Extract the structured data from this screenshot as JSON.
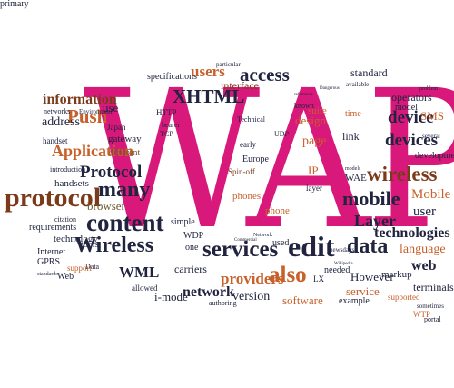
{
  "cloud": {
    "palette": {
      "magenta": "#d8187a",
      "navy": "#20243f",
      "brown": "#7b3b1a",
      "orange": "#c8602a",
      "olive": "#6b5a30",
      "pink": "#c01a6a",
      "gray": "#3b3b3b"
    },
    "words": [
      {
        "text": "WAP",
        "color": "magenta",
        "weight": "normal"
      },
      {
        "text": "users",
        "color": "orange"
      },
      {
        "text": "access",
        "color": "navy"
      },
      {
        "text": "standard",
        "color": "navy"
      },
      {
        "text": "specifications",
        "color": "navy"
      },
      {
        "text": "particular",
        "color": "navy"
      },
      {
        "text": "XHTML",
        "color": "navy"
      },
      {
        "text": "interface",
        "color": "brown"
      },
      {
        "text": "suite",
        "color": "orange"
      },
      {
        "text": "design",
        "color": "orange"
      },
      {
        "text": "page",
        "color": "orange"
      },
      {
        "text": "known",
        "color": "navy"
      },
      {
        "text": "operators",
        "color": "navy"
      },
      {
        "text": "model",
        "color": "navy"
      },
      {
        "text": "problem",
        "color": "navy"
      },
      {
        "text": "available",
        "color": "navy"
      },
      {
        "text": "information",
        "color": "brown"
      },
      {
        "text": "Push",
        "color": "orange"
      },
      {
        "text": "use",
        "color": "navy"
      },
      {
        "text": "address",
        "color": "navy"
      },
      {
        "text": "networks",
        "color": "navy"
      },
      {
        "text": "Environment",
        "color": "navy"
      },
      {
        "text": "Japan",
        "color": "navy"
      },
      {
        "text": "handset",
        "color": "navy"
      },
      {
        "text": "gateway",
        "color": "navy"
      },
      {
        "text": "Application",
        "color": "orange"
      },
      {
        "text": "different",
        "color": "olive"
      },
      {
        "text": "HTTP",
        "color": "navy"
      },
      {
        "text": "bearer",
        "color": "navy"
      },
      {
        "text": "TCP",
        "color": "navy"
      },
      {
        "text": "Technical",
        "color": "navy"
      },
      {
        "text": "early",
        "color": "navy"
      },
      {
        "text": "UDP",
        "color": "navy"
      },
      {
        "text": "Europe",
        "color": "navy"
      },
      {
        "text": "Spin-off",
        "color": "brown"
      },
      {
        "text": "time",
        "color": "orange"
      },
      {
        "text": "link",
        "color": "navy"
      },
      {
        "text": "device",
        "color": "navy"
      },
      {
        "text": "SMS",
        "color": "orange"
      },
      {
        "text": "devices",
        "color": "navy"
      },
      {
        "text": "development",
        "color": "navy"
      },
      {
        "text": "several",
        "color": "navy"
      },
      {
        "text": "Protocol",
        "color": "navy"
      },
      {
        "text": "many",
        "color": "navy"
      },
      {
        "text": "IP",
        "color": "orange"
      },
      {
        "text": "wireless",
        "color": "brown"
      },
      {
        "text": "protocol",
        "color": "brown"
      },
      {
        "text": "introduction",
        "color": "navy"
      },
      {
        "text": "handsets",
        "color": "navy"
      },
      {
        "text": "browser",
        "color": "olive"
      },
      {
        "text": "mobile",
        "color": "navy"
      },
      {
        "text": "WAE",
        "color": "navy"
      },
      {
        "text": "Mobile",
        "color": "orange"
      },
      {
        "text": "user",
        "color": "navy"
      },
      {
        "text": "content",
        "color": "navy"
      },
      {
        "text": "phones",
        "color": "orange"
      },
      {
        "text": "phone",
        "color": "orange"
      },
      {
        "text": "layer",
        "color": "navy"
      },
      {
        "text": "Layer",
        "color": "navy"
      },
      {
        "text": "technologies",
        "color": "navy"
      },
      {
        "text": "citation",
        "color": "navy"
      },
      {
        "text": "requirements",
        "color": "navy"
      },
      {
        "text": "technology",
        "color": "navy"
      },
      {
        "text": "tools",
        "color": "navy"
      },
      {
        "text": "Internet",
        "color": "navy"
      },
      {
        "text": "GPRS",
        "color": "navy"
      },
      {
        "text": "support",
        "color": "orange"
      },
      {
        "text": "Data",
        "color": "navy"
      },
      {
        "text": "Web",
        "color": "navy"
      },
      {
        "text": "Wireless",
        "color": "navy"
      },
      {
        "text": "services",
        "color": "navy"
      },
      {
        "text": "edit",
        "color": "navy"
      },
      {
        "text": "data",
        "color": "navy"
      },
      {
        "text": "language",
        "color": "orange"
      },
      {
        "text": "web",
        "color": "navy"
      },
      {
        "text": "WML",
        "color": "navy"
      },
      {
        "text": "WDP",
        "color": "navy"
      },
      {
        "text": "one",
        "color": "navy"
      },
      {
        "text": "simple",
        "color": "navy"
      },
      {
        "text": "carriers",
        "color": "navy"
      },
      {
        "text": "providers",
        "color": "orange"
      },
      {
        "text": "also",
        "color": "orange"
      },
      {
        "text": "used",
        "color": "navy"
      },
      {
        "text": "needed",
        "color": "navy"
      },
      {
        "text": "However",
        "color": "navy"
      },
      {
        "text": "markup",
        "color": "navy"
      },
      {
        "text": "terminals",
        "color": "navy"
      },
      {
        "text": "allowed",
        "color": "navy"
      },
      {
        "text": "i-mode",
        "color": "navy"
      },
      {
        "text": "network",
        "color": "navy"
      },
      {
        "text": "version",
        "color": "navy"
      },
      {
        "text": "software",
        "color": "orange"
      },
      {
        "text": "service",
        "color": "orange"
      },
      {
        "text": "example",
        "color": "navy"
      },
      {
        "text": "supported",
        "color": "orange"
      },
      {
        "text": "WTP",
        "color": "orange"
      },
      {
        "text": "portal",
        "color": "navy"
      },
      {
        "text": "authoring",
        "color": "navy"
      },
      {
        "text": "LX",
        "color": "navy"
      },
      {
        "text": "sometimes",
        "color": "navy"
      },
      {
        "text": "Wikipedia",
        "color": "navy"
      },
      {
        "text": "references",
        "color": "navy"
      },
      {
        "text": "Network",
        "color": "navy"
      },
      {
        "text": "Commercial",
        "color": "navy"
      },
      {
        "text": "standards",
        "color": "navy"
      },
      {
        "text": "Dangerous",
        "color": "navy"
      },
      {
        "text": "newsdays",
        "color": "navy"
      },
      {
        "text": "models",
        "color": "navy"
      },
      {
        "text": "primary",
        "color": "navy"
      }
    ]
  }
}
